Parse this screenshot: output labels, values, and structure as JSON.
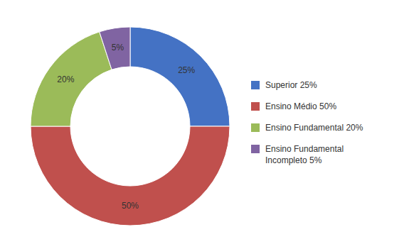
{
  "chart_data": {
    "type": "pie",
    "categories": [
      "Superior 25%",
      "Ensino Médio 50%",
      "Ensino Fundamental 20%",
      "Ensino Fundamental\nIncompleto 5%"
    ],
    "values": [
      25,
      50,
      20,
      5
    ],
    "value_labels": [
      "25%",
      "50%",
      "20%",
      "5%"
    ],
    "colors": [
      "#4472C4",
      "#C0504D",
      "#9BBB59",
      "#8064A2"
    ],
    "data_labels": true,
    "legend": "right"
  }
}
